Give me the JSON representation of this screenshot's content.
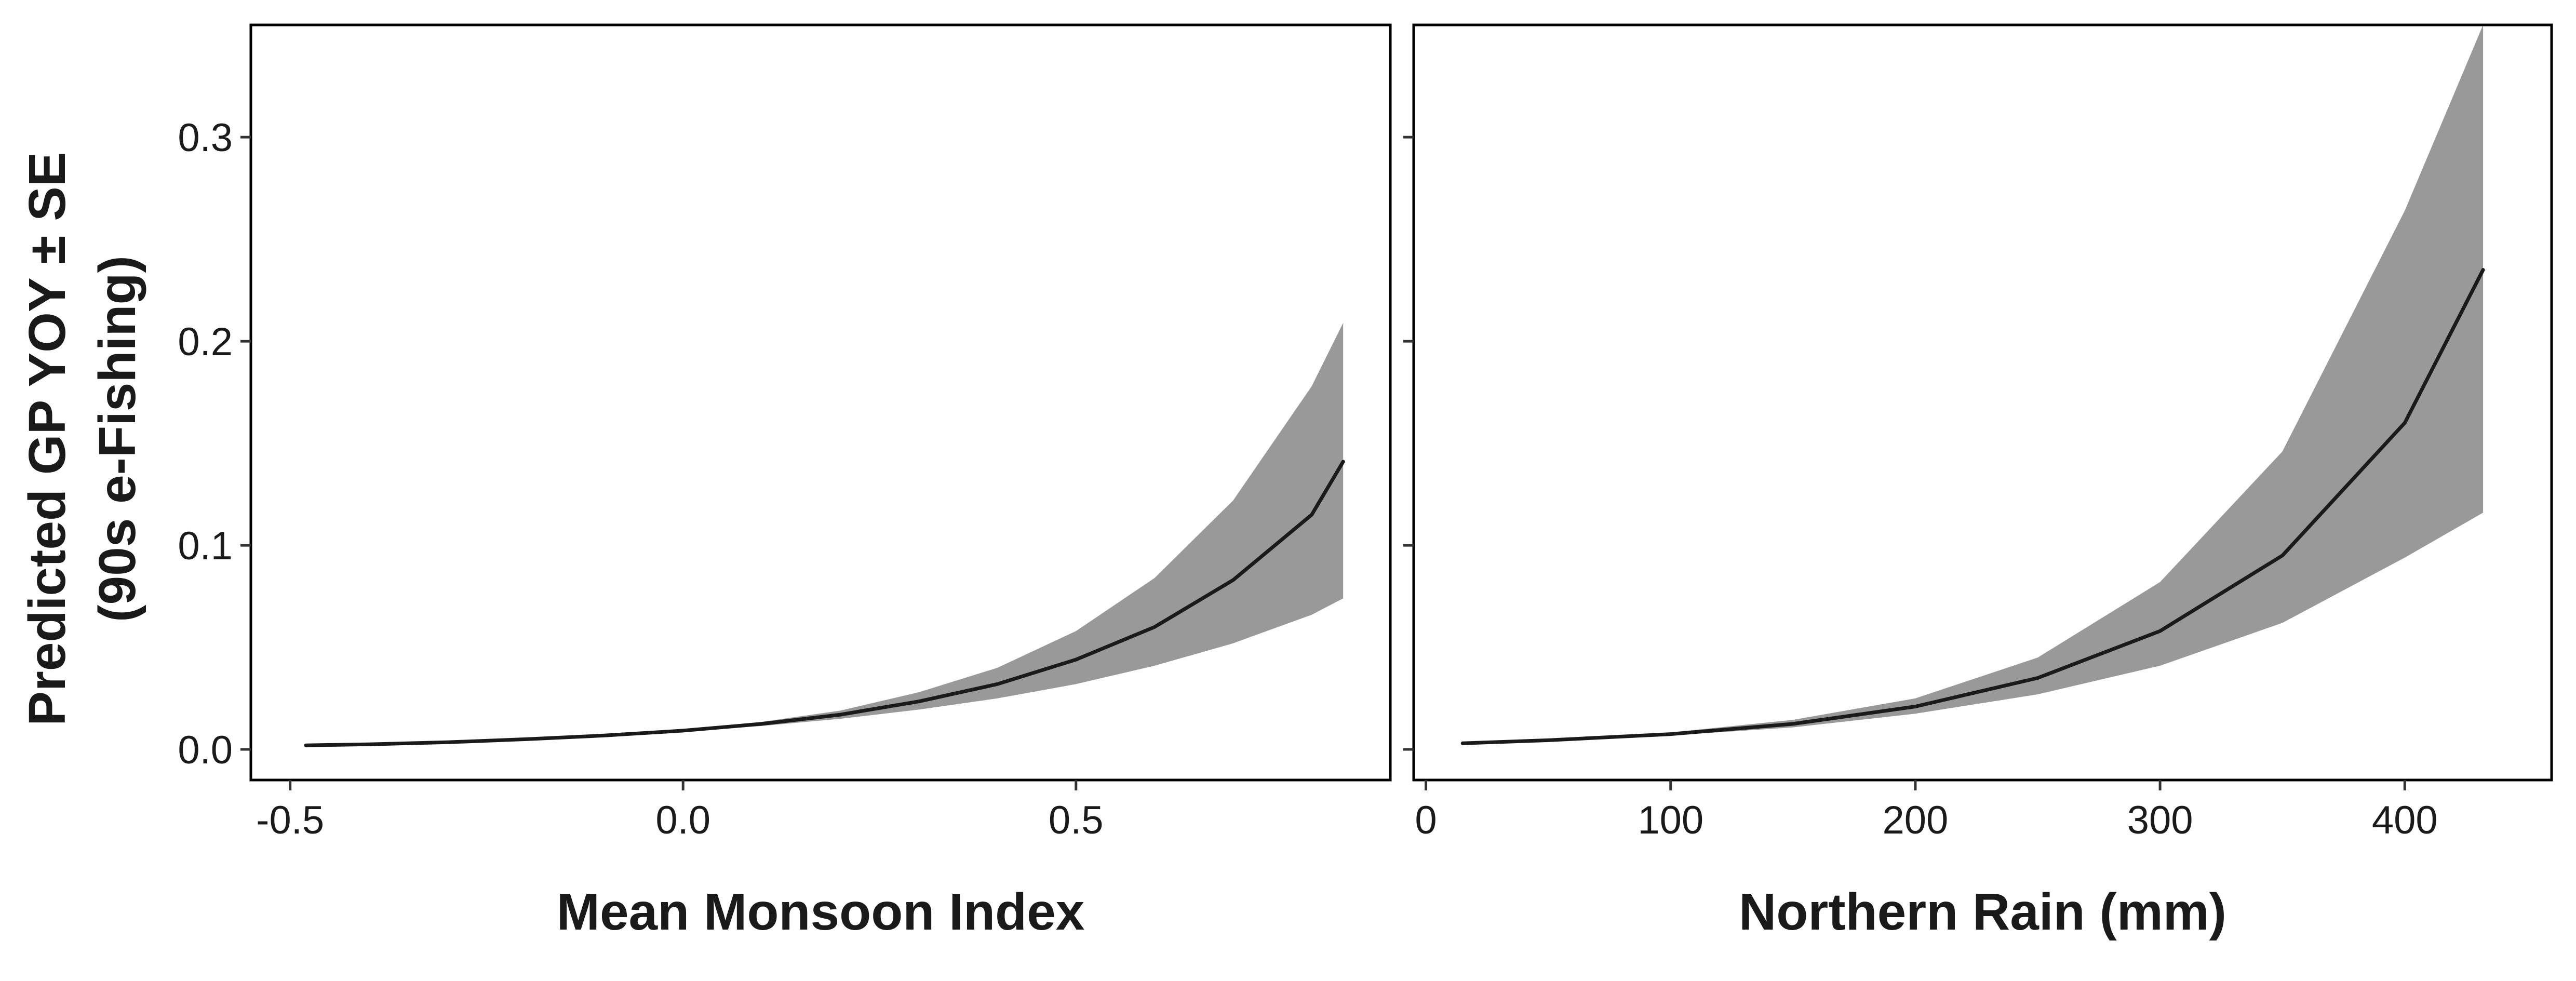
{
  "ylabel_line1": "Predicted GP YOY ± SE",
  "ylabel_line2": "(90s e-Fishing)",
  "colors": {
    "band": "#999999",
    "line": "#1a1a1a",
    "frame": "#000000",
    "text": "#1a1a1a"
  },
  "chart_data": [
    {
      "type": "line",
      "title": "",
      "xlabel": "Mean Monsoon Index",
      "ylabel": "Predicted GP YOY ± SE (90s e-Fishing)",
      "xlim": [
        -0.55,
        0.9
      ],
      "ylim": [
        -0.015,
        0.355
      ],
      "xticks": [
        -0.5,
        0.0,
        0.5
      ],
      "xtick_labels": [
        "-0.5",
        "0.0",
        "0.5"
      ],
      "yticks": [
        0.0,
        0.1,
        0.2,
        0.3
      ],
      "ytick_labels": [
        "0.0",
        "0.1",
        "0.2",
        "0.3"
      ],
      "grid": false,
      "series": [
        {
          "kind": "fit_with_se_band",
          "x": [
            -0.48,
            -0.4,
            -0.3,
            -0.2,
            -0.1,
            0.0,
            0.1,
            0.2,
            0.3,
            0.4,
            0.5,
            0.6,
            0.7,
            0.8,
            0.84
          ],
          "y": [
            0.002,
            0.0025,
            0.0035,
            0.005,
            0.0068,
            0.0092,
            0.0125,
            0.017,
            0.0235,
            0.032,
            0.044,
            0.06,
            0.083,
            0.115,
            0.141
          ],
          "lower": [
            0.0019,
            0.0024,
            0.0033,
            0.0047,
            0.0064,
            0.0088,
            0.0115,
            0.015,
            0.0195,
            0.025,
            0.032,
            0.041,
            0.052,
            0.066,
            0.074
          ],
          "upper": [
            0.0021,
            0.0027,
            0.0037,
            0.0053,
            0.0073,
            0.0098,
            0.0135,
            0.019,
            0.028,
            0.04,
            0.058,
            0.084,
            0.122,
            0.178,
            0.209
          ]
        }
      ]
    },
    {
      "type": "line",
      "title": "",
      "xlabel": "Northern Rain (mm)",
      "ylabel": "",
      "xlim": [
        -5,
        460
      ],
      "ylim": [
        -0.015,
        0.355
      ],
      "xticks": [
        0,
        100,
        200,
        300,
        400
      ],
      "xtick_labels": [
        "0",
        "100",
        "200",
        "300",
        "400"
      ],
      "yticks": [
        0.0,
        0.1,
        0.2,
        0.3
      ],
      "ytick_labels": [],
      "grid": false,
      "series": [
        {
          "kind": "fit_with_se_band",
          "x": [
            15,
            50,
            100,
            150,
            200,
            250,
            300,
            350,
            400,
            432
          ],
          "y": [
            0.003,
            0.0045,
            0.0075,
            0.0125,
            0.021,
            0.035,
            0.058,
            0.095,
            0.16,
            0.235
          ],
          "lower": [
            0.0028,
            0.0042,
            0.0068,
            0.0108,
            0.0175,
            0.027,
            0.041,
            0.062,
            0.094,
            0.116
          ],
          "upper": [
            0.0032,
            0.0048,
            0.0083,
            0.0145,
            0.025,
            0.045,
            0.082,
            0.146,
            0.264,
            0.355
          ]
        }
      ]
    }
  ]
}
